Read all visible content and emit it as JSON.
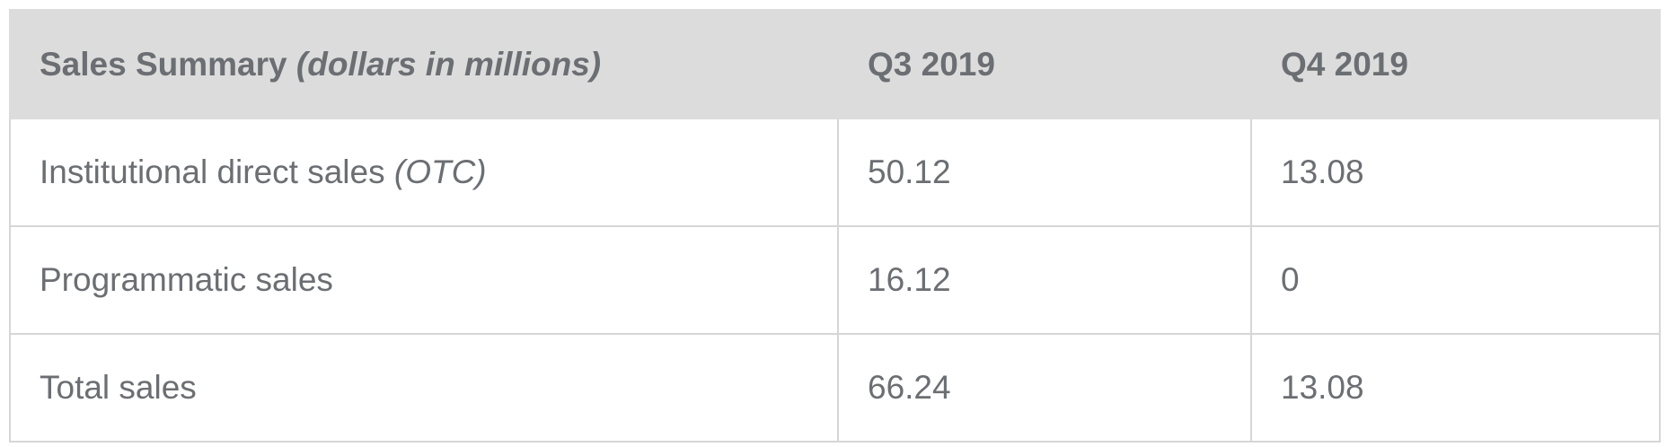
{
  "table": {
    "header": {
      "title": "Sales Summary",
      "title_note": "(dollars in millions)",
      "columns": [
        "Q3 2019",
        "Q4 2019"
      ]
    },
    "rows": [
      {
        "label": "Institutional direct sales",
        "note": "(OTC)",
        "values": [
          50.12,
          13.08
        ]
      },
      {
        "label": "Programmatic sales",
        "values": [
          16.12,
          0
        ]
      },
      {
        "label": "Total sales",
        "values": [
          66.24,
          13.08
        ]
      }
    ]
  }
}
